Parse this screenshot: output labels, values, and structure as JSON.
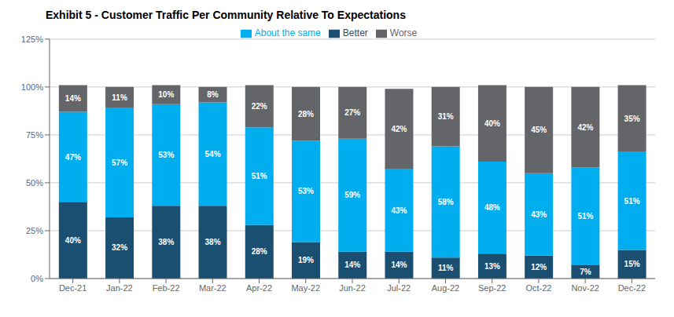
{
  "chart_data": {
    "type": "bar",
    "title": "Exhibit 5 - Customer Traffic Per Community Relative To Expectations",
    "categories": [
      "Dec-21",
      "Jan-22",
      "Feb-22",
      "Mar-22",
      "Apr-22",
      "May-22",
      "Jun-22",
      "Jul-22",
      "Aug-22",
      "Sep-22",
      "Oct-22",
      "Nov-22",
      "Dec-22"
    ],
    "series": [
      {
        "name": "Better",
        "color": "#1b4f72",
        "values": [
          40,
          32,
          38,
          38,
          28,
          19,
          14,
          14,
          11,
          13,
          12,
          7,
          15
        ],
        "value_labels": [
          "40%",
          "32%",
          "38%",
          "38%",
          "28%",
          "19%",
          "14%",
          "14%",
          "11%",
          "13%",
          "12%",
          "7%",
          "15%"
        ]
      },
      {
        "name": "About the same",
        "color": "#00aeef",
        "values": [
          47,
          57,
          53,
          54,
          51,
          53,
          59,
          43,
          58,
          48,
          43,
          51,
          51
        ],
        "value_labels": [
          "47%",
          "57%",
          "53%",
          "54%",
          "51%",
          "53%",
          "59%",
          "43%",
          "58%",
          "48%",
          "43%",
          "51%",
          "51%"
        ]
      },
      {
        "name": "Worse",
        "color": "#636569",
        "values": [
          14,
          11,
          10,
          8,
          22,
          28,
          27,
          42,
          31,
          40,
          45,
          42,
          35
        ],
        "value_labels": [
          "14%",
          "11%",
          "10%",
          "8%",
          "22%",
          "28%",
          "27%",
          "42%",
          "31%",
          "40%",
          "45%",
          "42%",
          "35%"
        ]
      }
    ],
    "stacked": true,
    "data_labels": true,
    "ylim": [
      0,
      125
    ],
    "yticks": [
      {
        "value": 0,
        "label": "0%"
      },
      {
        "value": 25,
        "label": "25%"
      },
      {
        "value": 50,
        "label": "50%"
      },
      {
        "value": 75,
        "label": "75%"
      },
      {
        "value": 100,
        "label": "100%"
      },
      {
        "value": 125,
        "label": "125%"
      }
    ],
    "grid": true,
    "legend": "top"
  }
}
